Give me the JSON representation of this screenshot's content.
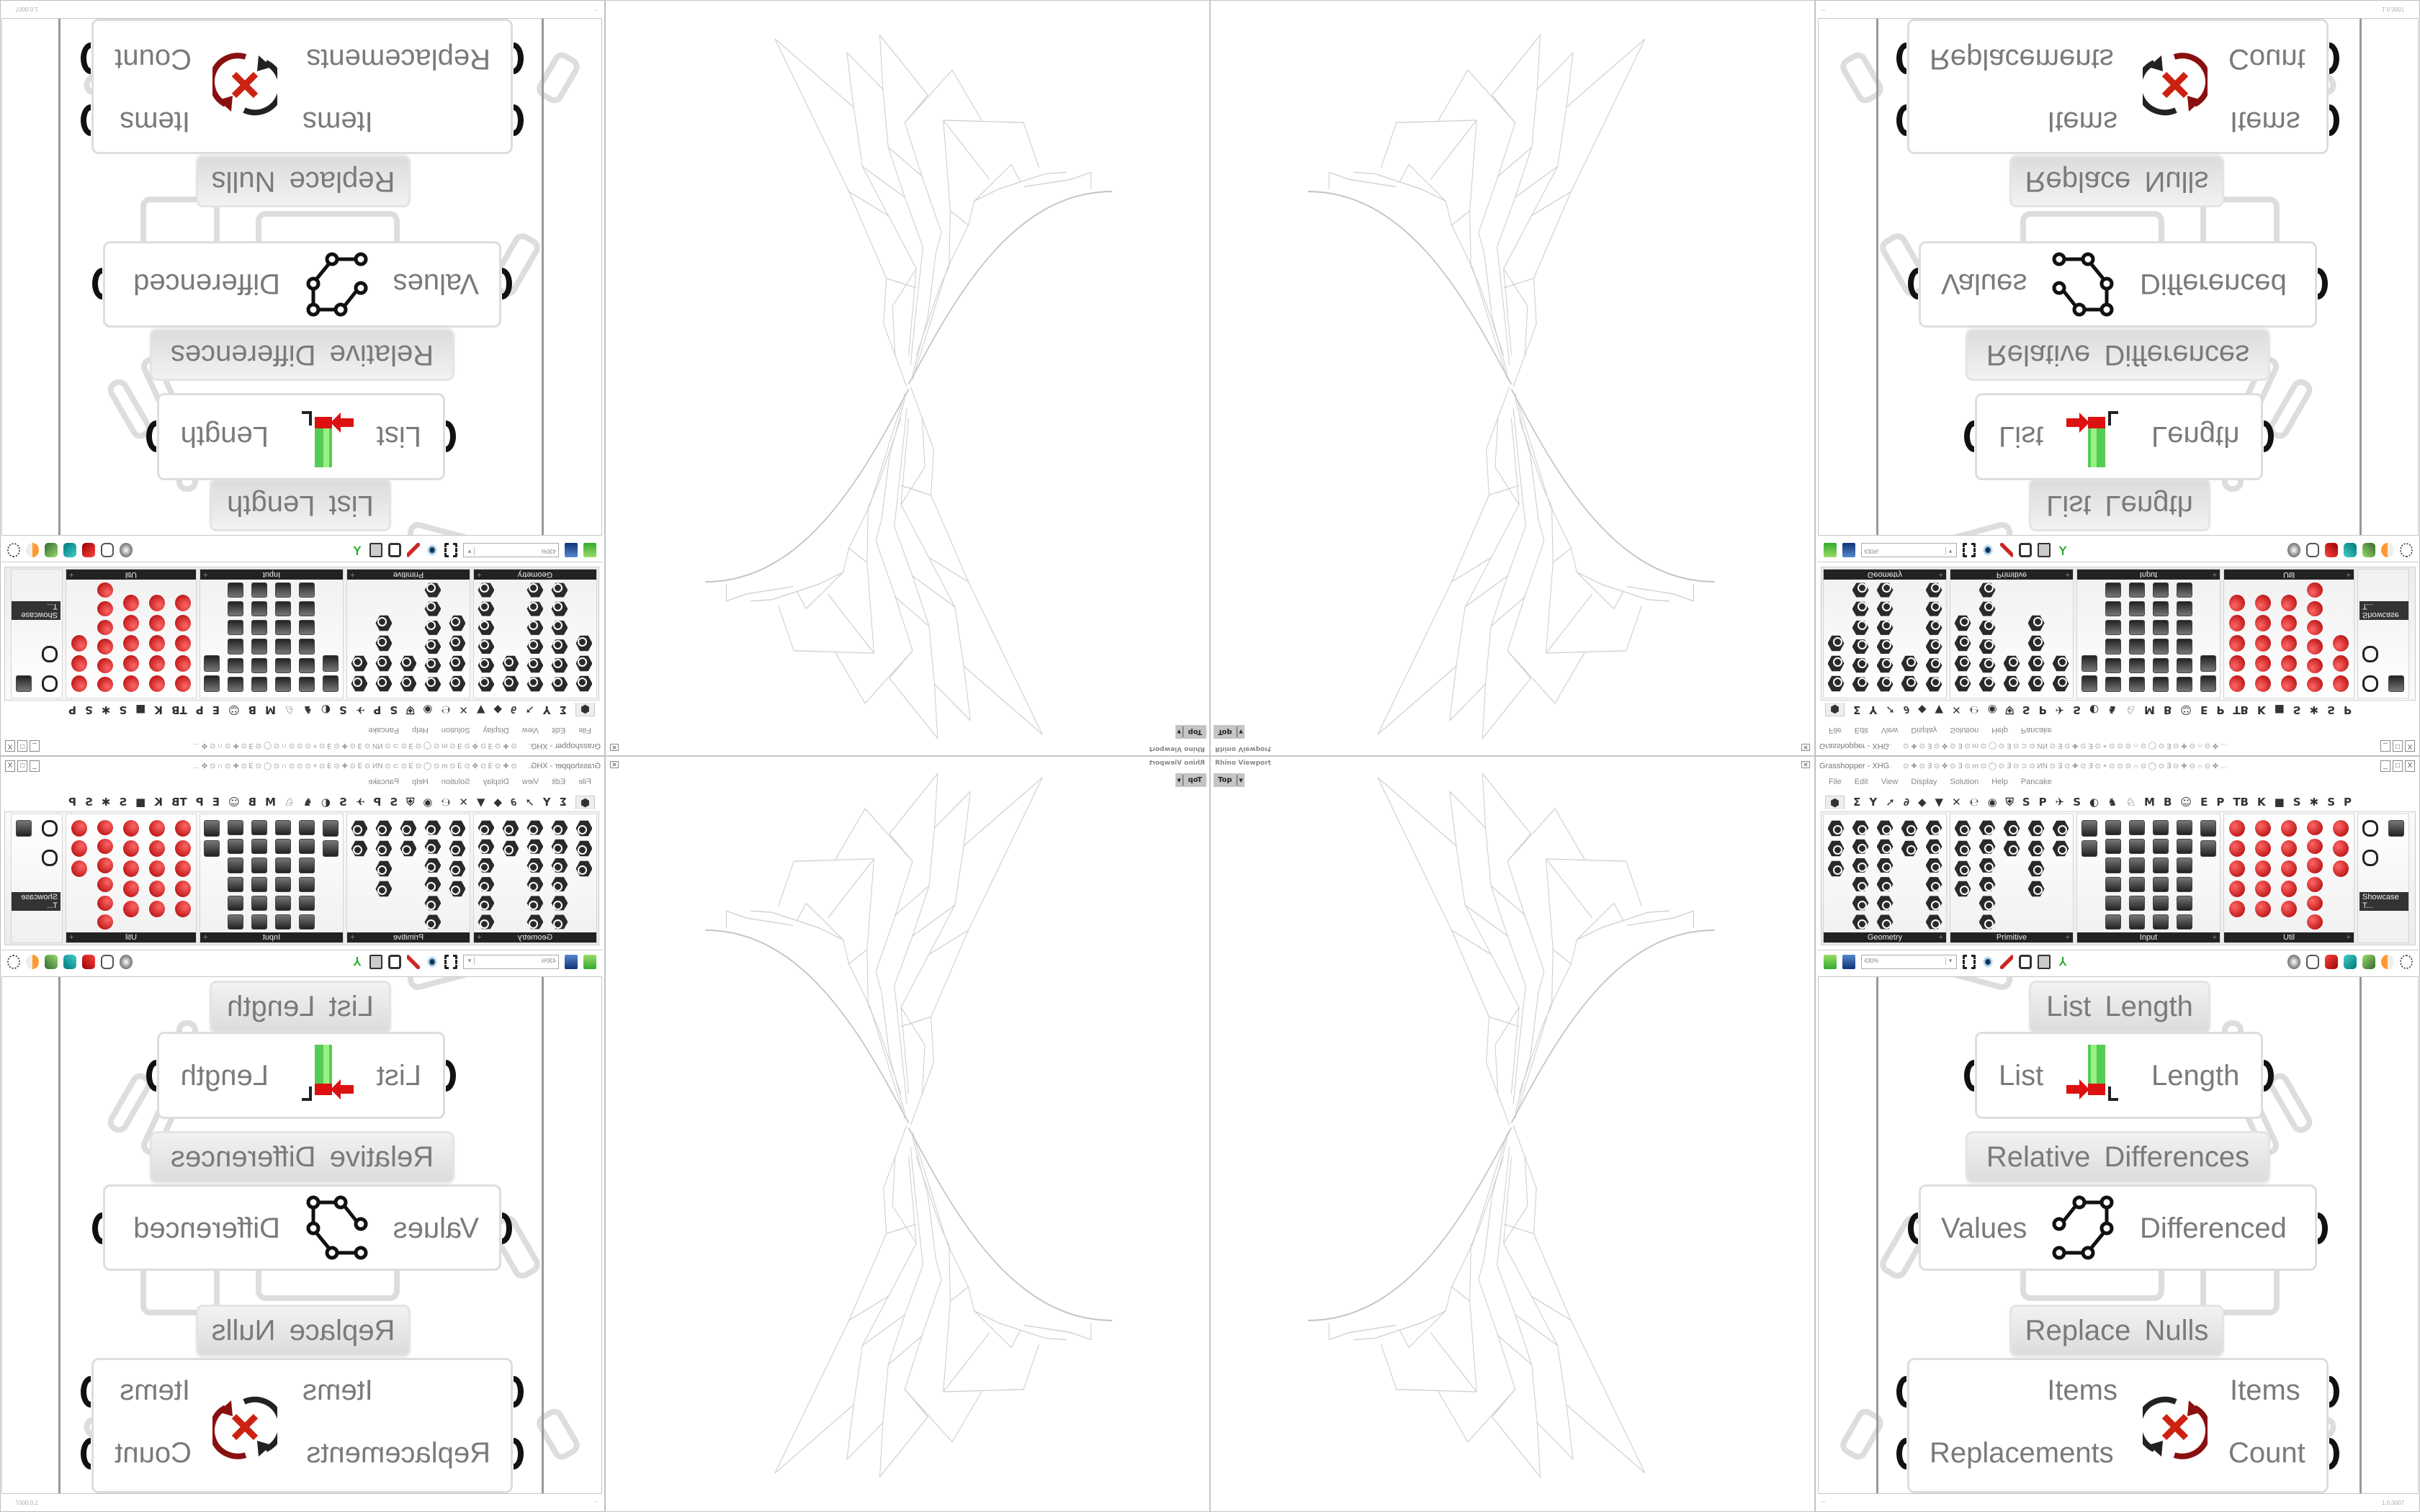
{
  "viewport": {
    "title": "Rhino Viewport",
    "view": "Top",
    "dropdown_icon": "chevron-down-icon",
    "close_icon": "close-icon"
  },
  "grasshopper": {
    "title": "Grasshopper - XHG.",
    "title_symbols": "⊙ ✚ ⊙ ∃ ⊙ ✤ ⊙ ∃ ⊙ m ⊙ ◯ ⊙ ∃ ⊙ ⊃ ⊙ ИN ⊙ ∃ ⊙ ✚ ⊙ ∃ ⊙ + ⊙ ⊙ ⊙ ∩ ⊙ ◯ ⊙ ∃ ⊙ ✚ ⊙ ∩ ⊙ ✤ ...",
    "window_buttons": {
      "minimize": "_",
      "maximize": "□",
      "close": "X"
    },
    "menu": [
      "File",
      "Edit",
      "View",
      "Display",
      "Solution",
      "Help",
      "Pancake"
    ],
    "tabs": [
      "⬢",
      "Σ",
      "Y",
      "➚",
      "∂",
      "◆",
      "▼",
      "✕",
      "℮",
      "◉",
      "⛨",
      "S",
      "P",
      "✈",
      "S",
      "◐",
      "♞",
      "♘",
      "M",
      "B",
      "☺",
      "E",
      "P",
      "TB",
      "K",
      "■",
      "S",
      "✱",
      "S",
      "P"
    ],
    "panels": [
      {
        "label": "Geometry",
        "style": "hex",
        "columns": [
          3,
          6,
          6,
          2,
          6
        ]
      },
      {
        "label": "Primitive",
        "style": "hex",
        "columns": [
          4,
          6,
          2,
          4,
          2
        ]
      },
      {
        "label": "Input",
        "style": "sq",
        "columns": [
          2,
          6,
          6,
          6,
          6,
          2
        ]
      },
      {
        "label": "Util",
        "style": "misc",
        "columns": [
          5,
          5,
          5,
          6,
          3
        ]
      }
    ],
    "showcase_label": "Showcase T...",
    "zoom": "430%",
    "toolbar_icons": [
      "new-file-icon",
      "save-icon",
      "zoom-extents-icon",
      "eye-icon",
      "sketch-pen-icon",
      "bake-icon",
      "cluster-icon",
      "axis-icon"
    ],
    "toolbar_right_icons": [
      "preview-wireframe-icon",
      "preview-shaded-icon",
      "preview-selected-icon",
      "display-mesh-icon",
      "display-surface-icon",
      "display-sphere-icon",
      "selection-icon"
    ],
    "canvas": {
      "components": [
        {
          "label": "List Length",
          "inputs": [
            "List"
          ],
          "outputs": [
            "Length"
          ],
          "icon": "list-length-icon"
        },
        {
          "label": "Relative Differences",
          "inputs": [
            "Values"
          ],
          "outputs": [
            "Differenced"
          ],
          "icon": "relative-differences-icon"
        },
        {
          "label": "Replace Nulls",
          "inputs": [
            "Items",
            "Replacements"
          ],
          "outputs": [
            "Items",
            "Count"
          ],
          "icon": "replace-nulls-icon"
        }
      ]
    },
    "status": {
      "left": "--",
      "version": "1.0.0007"
    }
  }
}
